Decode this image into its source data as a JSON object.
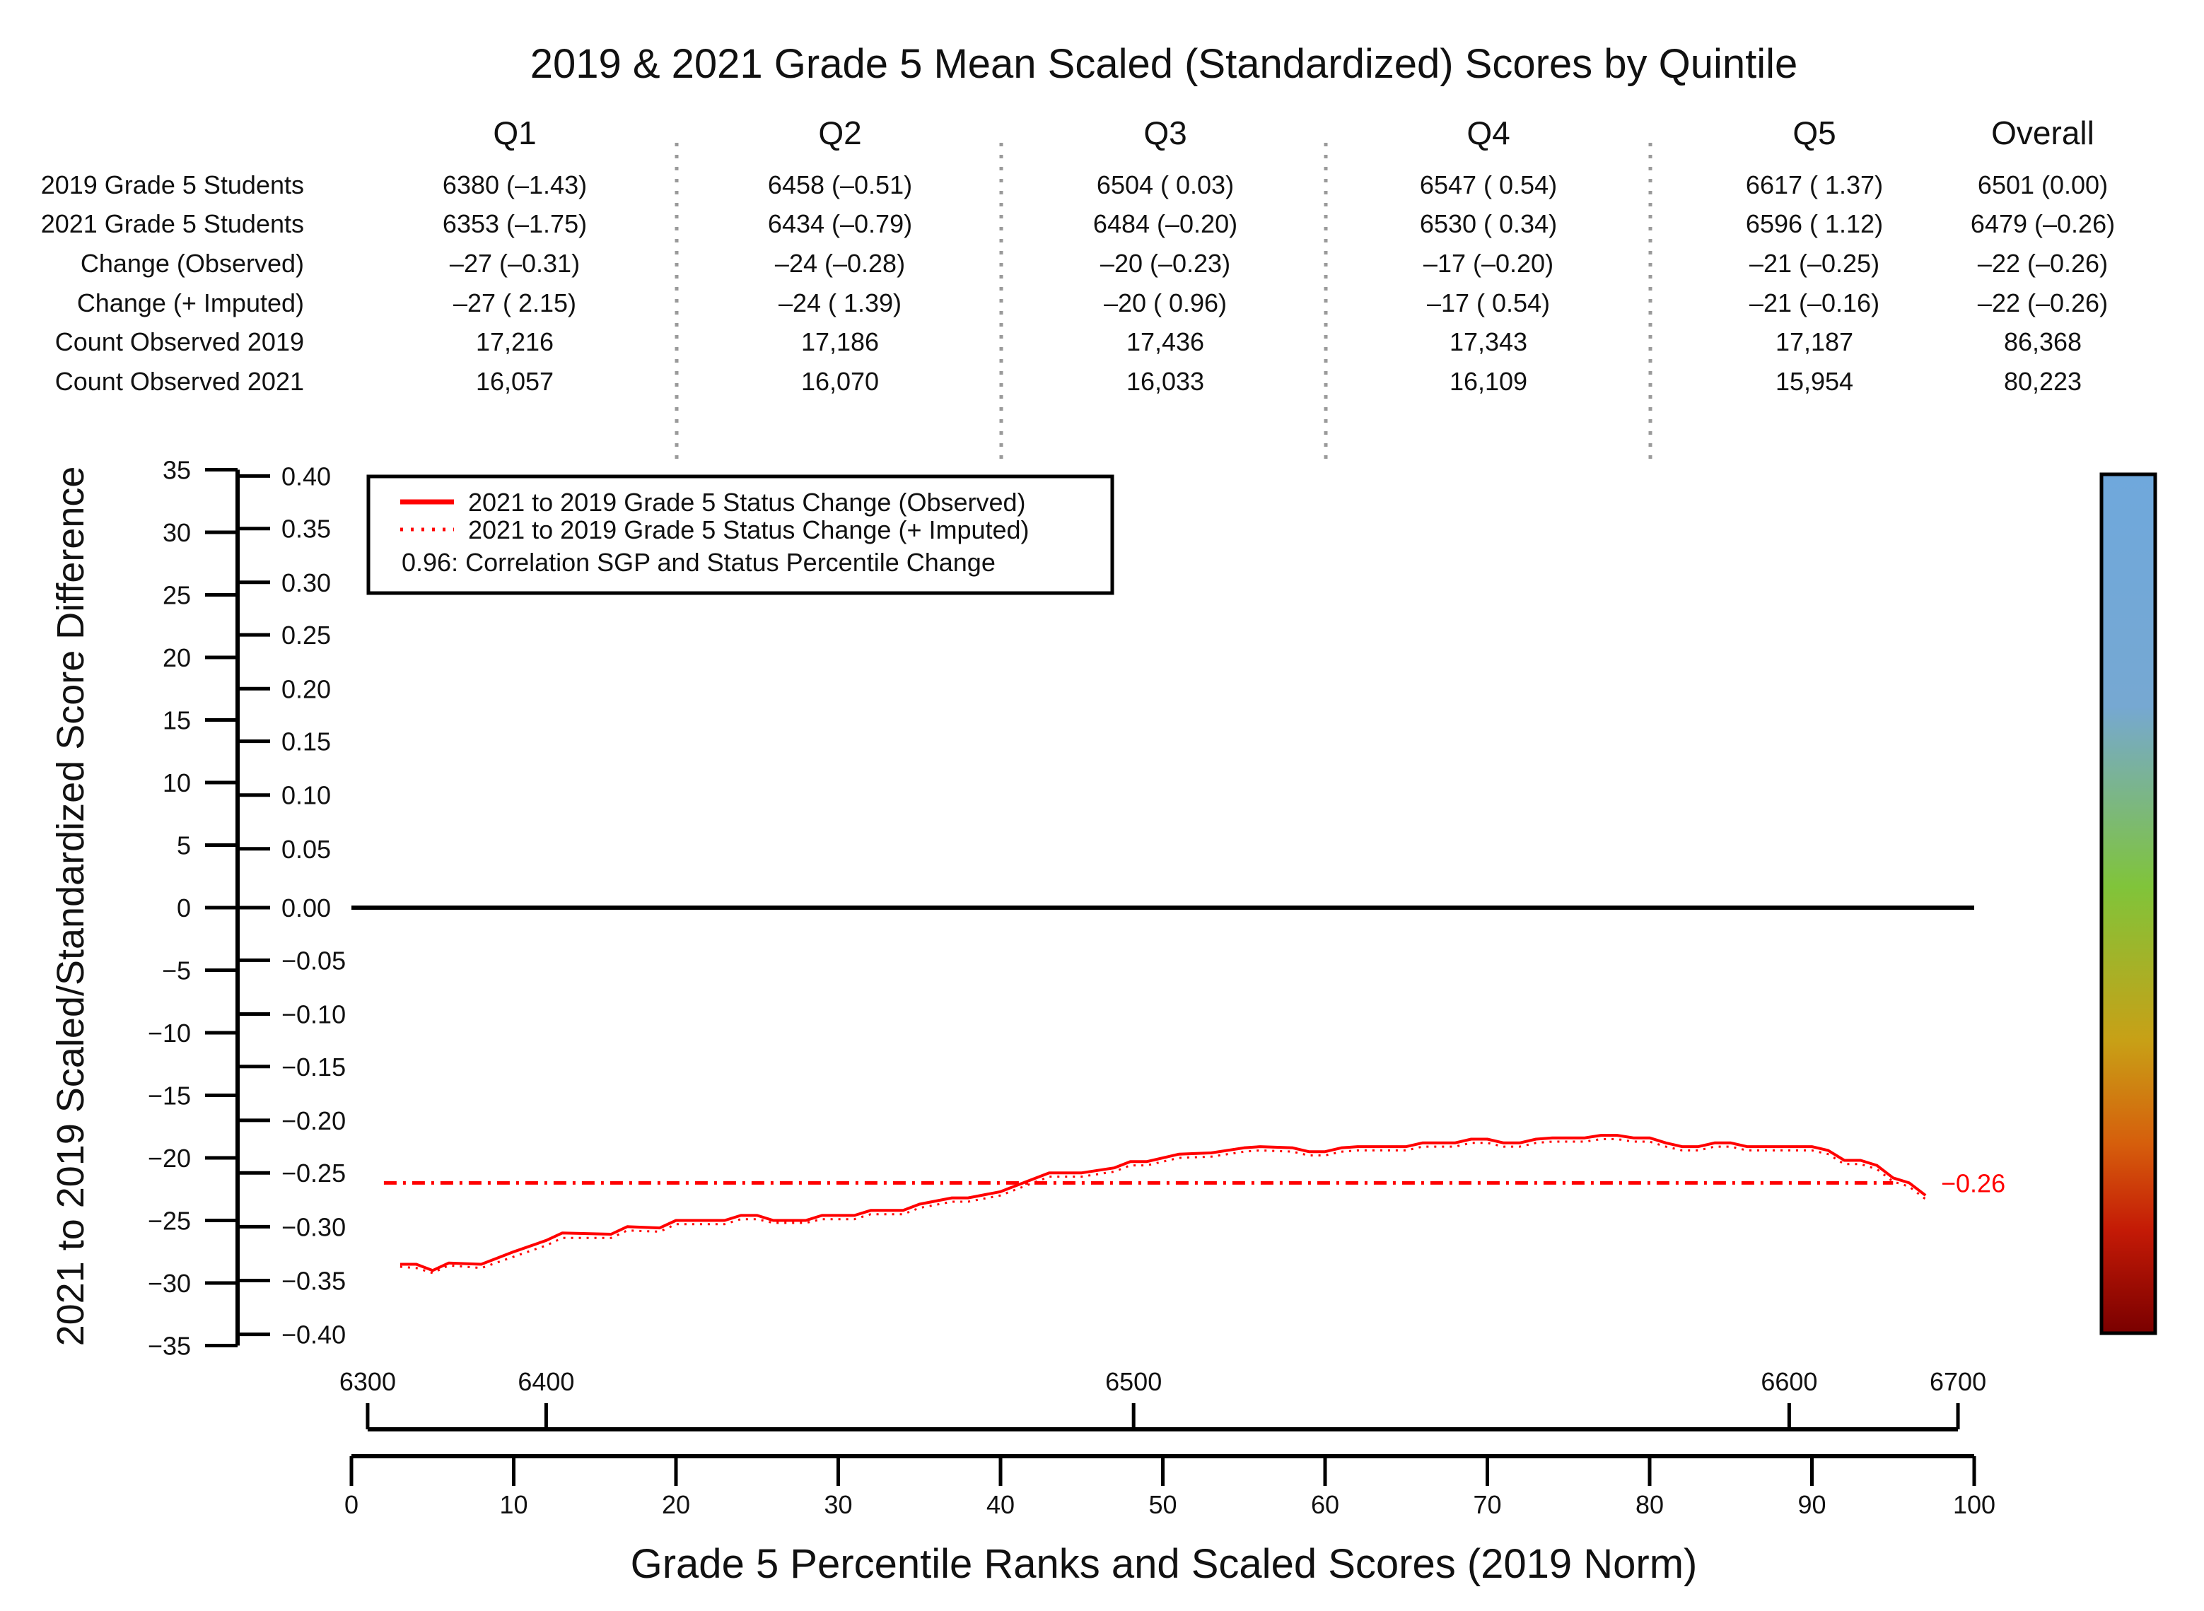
{
  "chart_data": {
    "type": "line",
    "title": "2019 & 2021 Grade 5 Mean Scaled (Standardized) Scores by Quintile",
    "xlabel": "Grade 5 Percentile Ranks and Scaled Scores (2019 Norm)",
    "ylabel": "2021 to 2019 Scaled/Standardized Score Difference",
    "table": {
      "columns": [
        "Q1",
        "Q2",
        "Q3",
        "Q4",
        "Q5",
        "Overall"
      ],
      "rows": [
        {
          "label": "2019 Grade 5 Students",
          "values": [
            "6380 (–1.43)",
            "6458 (–0.51)",
            "6504 ( 0.03)",
            "6547 ( 0.54)",
            "6617 ( 1.37)",
            "6501 (0.00)"
          ]
        },
        {
          "label": "2021 Grade 5 Students",
          "values": [
            "6353 (–1.75)",
            "6434 (–0.79)",
            "6484 (–0.20)",
            "6530 ( 0.34)",
            "6596 ( 1.12)",
            "6479 (–0.26)"
          ]
        },
        {
          "label": "Change (Observed)",
          "values": [
            "–27 (–0.31)",
            "–24 (–0.28)",
            "–20 (–0.23)",
            "–17 (–0.20)",
            "–21 (–0.25)",
            "–22 (–0.26)"
          ]
        },
        {
          "label": "Change (+ Imputed)",
          "values": [
            "–27 ( 2.15)",
            "–24 ( 1.39)",
            "–20 ( 0.96)",
            "–17 ( 0.54)",
            "–21 (–0.16)",
            "–22 (–0.26)"
          ]
        },
        {
          "label": "Count Observed 2019",
          "values": [
            "17,216",
            "17,186",
            "17,436",
            "17,343",
            "17,187",
            "86,368"
          ]
        },
        {
          "label": "Count Observed 2021",
          "values": [
            "16,057",
            "16,070",
            "16,033",
            "16,109",
            "15,954",
            "80,223"
          ]
        }
      ]
    },
    "y_scaled": {
      "range": [
        -35,
        35
      ],
      "ticks": [
        35,
        30,
        25,
        20,
        15,
        10,
        5,
        0,
        -5,
        -10,
        -15,
        -20,
        -25,
        -30,
        -35
      ],
      "tick_labels": [
        "35",
        "30",
        "25",
        "20",
        "15",
        "10",
        "5",
        "0",
        "−5",
        "−10",
        "−15",
        "−20",
        "−25",
        "−30",
        "−35"
      ]
    },
    "y_standardized": {
      "tick_labels": [
        "0.40",
        "0.35",
        "0.30",
        "0.25",
        "0.20",
        "0.15",
        "0.10",
        "0.05",
        "0.00",
        "−0.05",
        "−0.10",
        "−0.15",
        "−0.20",
        "−0.25",
        "−0.30",
        "−0.35",
        "−0.40"
      ],
      "ticks_scaled": [
        34.5,
        30.3,
        26.0,
        21.8,
        17.5,
        13.3,
        9.0,
        4.7,
        0,
        -4.2,
        -8.5,
        -12.7,
        -17.0,
        -21.2,
        -25.5,
        -29.8,
        -34.1
      ]
    },
    "x_percentile": {
      "range": [
        0,
        100
      ],
      "ticks": [
        0,
        10,
        20,
        30,
        40,
        50,
        60,
        70,
        80,
        90,
        100
      ],
      "tick_labels": [
        "0",
        "10",
        "20",
        "30",
        "40",
        "50",
        "60",
        "70",
        "80",
        "90",
        "100"
      ]
    },
    "x_scaled_score": {
      "range": [
        6300,
        6700
      ],
      "tick_labels": [
        "6300",
        "6400",
        "6500",
        "6600",
        "6700"
      ],
      "ticks_percentile": [
        1.0,
        12.0,
        48.2,
        88.6,
        99.0
      ]
    },
    "legend": {
      "position": "top-left",
      "entries": [
        {
          "label": "2021 to 2019 Grade 5 Status Change (Observed)",
          "style": "solid"
        },
        {
          "label": "2021 to 2019 Grade 5 Status Change (+ Imputed)",
          "style": "dotted"
        }
      ],
      "note": "0.96: Correlation SGP and Status Percentile Change"
    },
    "reference_line": {
      "y": -22,
      "label": "−0.26",
      "style": "dash-dot"
    },
    "zero_line": 0,
    "colors": {
      "series": "#ff0000",
      "axis": "#000000"
    },
    "colorbar": {
      "colors": [
        "#6fa8dc",
        "#76a8d2",
        "#80c43a",
        "#c8a016",
        "#d65e0c",
        "#c41a06",
        "#7a0000"
      ]
    },
    "series": [
      {
        "style": "solid",
        "x": [
          3,
          4,
          5,
          6,
          8,
          10,
          12,
          13,
          16,
          17,
          19,
          20,
          23,
          24,
          25,
          26,
          28,
          29,
          31,
          32,
          34,
          35,
          37,
          38,
          40,
          41,
          43,
          44,
          45,
          47,
          48,
          49,
          51,
          53,
          55,
          56,
          58,
          59,
          60,
          61,
          62,
          63,
          64,
          65,
          66,
          67,
          68,
          69,
          70,
          71,
          72,
          73,
          74,
          75,
          76,
          77,
          78,
          79,
          80,
          81,
          82,
          83,
          84,
          85,
          86,
          87,
          88,
          89,
          90,
          91,
          92,
          93,
          94,
          95,
          96,
          97
        ],
        "y": [
          -28.5,
          -28.5,
          -29,
          -28.4,
          -28.5,
          -27.5,
          -26.6,
          -26,
          -26.1,
          -25.5,
          -25.6,
          -25,
          -25,
          -24.6,
          -24.6,
          -25,
          -25,
          -24.6,
          -24.6,
          -24.2,
          -24.2,
          -23.7,
          -23.2,
          -23.2,
          -22.7,
          -22.2,
          -21.2,
          -21.2,
          -21.2,
          -20.8,
          -20.3,
          -20.3,
          -19.7,
          -19.6,
          -19.2,
          -19.1,
          -19.2,
          -19.5,
          -19.5,
          -19.2,
          -19.1,
          -19.1,
          -19.1,
          -19.1,
          -18.8,
          -18.8,
          -18.8,
          -18.5,
          -18.5,
          -18.8,
          -18.8,
          -18.5,
          -18.4,
          -18.4,
          -18.4,
          -18.2,
          -18.2,
          -18.4,
          -18.4,
          -18.8,
          -19.1,
          -19.1,
          -18.8,
          -18.8,
          -19.1,
          -19.1,
          -19.1,
          -19.1,
          -19.1,
          -19.4,
          -20.2,
          -20.2,
          -20.6,
          -21.6,
          -22.0,
          -23.0
        ]
      },
      {
        "style": "dotted",
        "x": [
          3,
          4,
          5,
          6,
          8,
          10,
          12,
          13,
          16,
          17,
          19,
          20,
          23,
          24,
          25,
          26,
          28,
          29,
          31,
          32,
          34,
          35,
          37,
          38,
          40,
          41,
          43,
          44,
          45,
          47,
          48,
          49,
          51,
          53,
          55,
          56,
          58,
          59,
          60,
          61,
          62,
          63,
          64,
          65,
          66,
          67,
          68,
          69,
          70,
          71,
          72,
          73,
          74,
          75,
          76,
          77,
          78,
          79,
          80,
          81,
          82,
          83,
          84,
          85,
          86,
          87,
          88,
          89,
          90,
          91,
          92,
          93,
          94,
          95,
          96,
          97
        ],
        "y": [
          -28.7,
          -28.8,
          -29.2,
          -28.6,
          -28.8,
          -27.9,
          -27.0,
          -26.4,
          -26.4,
          -25.8,
          -25.9,
          -25.3,
          -25.3,
          -24.9,
          -24.9,
          -25.2,
          -25.2,
          -24.9,
          -24.9,
          -24.5,
          -24.5,
          -24.0,
          -23.5,
          -23.5,
          -23.0,
          -22.5,
          -21.5,
          -21.5,
          -21.5,
          -21.1,
          -20.6,
          -20.6,
          -20.0,
          -19.9,
          -19.5,
          -19.4,
          -19.5,
          -19.8,
          -19.8,
          -19.5,
          -19.4,
          -19.4,
          -19.4,
          -19.4,
          -19.1,
          -19.1,
          -19.1,
          -18.8,
          -18.8,
          -19.1,
          -19.1,
          -18.8,
          -18.7,
          -18.7,
          -18.7,
          -18.5,
          -18.5,
          -18.7,
          -18.7,
          -19.1,
          -19.4,
          -19.4,
          -19.1,
          -19.1,
          -19.4,
          -19.4,
          -19.4,
          -19.4,
          -19.4,
          -19.7,
          -20.5,
          -20.5,
          -20.9,
          -21.9,
          -22.3,
          -23.3
        ]
      }
    ]
  }
}
